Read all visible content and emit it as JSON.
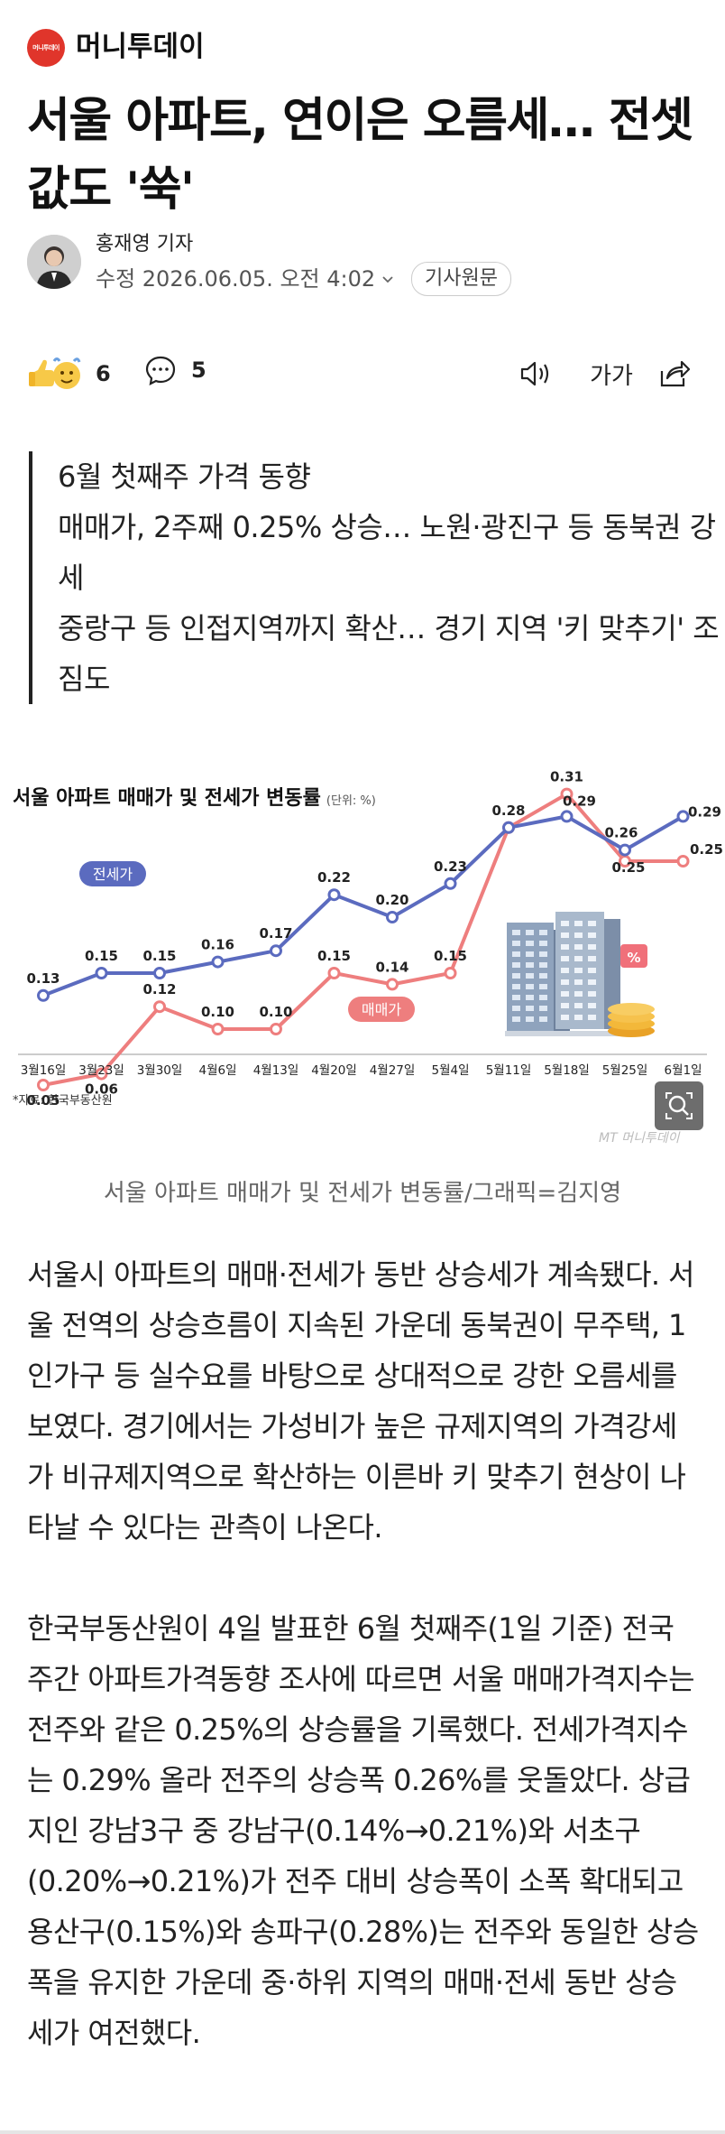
{
  "publisher": {
    "logo_text": "머니투데이",
    "name": "머니투데이"
  },
  "article": {
    "title": "서울 아파트, 연이은 오름세… 전셋값도 '쑥'",
    "author": "홍재영 기자",
    "date": "수정 2026.06.05. 오전 4:02",
    "original_button": "기사원문"
  },
  "actions": {
    "reaction_count": "6",
    "comment_count": "5",
    "font_size_label": "가가"
  },
  "summary": [
    "6월 첫째주 가격 동향",
    "매매가, 2주째 0.25% 상승… 노원·광진구 등 동북권 강세",
    "중랑구 등 인접지역까지 확산… 경기 지역 '키 맞추기' 조짐도"
  ],
  "chart_data": {
    "type": "line",
    "title": "서울 아파트 매매가 및 전세가 변동률",
    "unit": "(단위: %)",
    "categories": [
      "3월16일",
      "3월23일",
      "3월30일",
      "4월6일",
      "4월13일",
      "4월20일",
      "4월27일",
      "5월4일",
      "5월11일",
      "5월18일",
      "5월25일",
      "6월1일"
    ],
    "series": [
      {
        "name": "전세가",
        "color": "#5b6bbf",
        "values": [
          0.13,
          0.15,
          0.15,
          0.16,
          0.17,
          0.22,
          0.2,
          0.23,
          0.28,
          0.29,
          0.26,
          0.29
        ]
      },
      {
        "name": "매매가",
        "color": "#ee7e7e",
        "values": [
          0.05,
          0.06,
          0.12,
          0.1,
          0.1,
          0.15,
          0.14,
          0.15,
          0.28,
          0.31,
          0.25,
          0.25
        ]
      }
    ],
    "labels": {
      "jeonse": [
        "0.13",
        "0.15",
        "0.15",
        "0.16",
        "0.17",
        "0.22",
        "0.20",
        "0.23",
        "0.28",
        "0.29",
        "0.26",
        "0.29"
      ],
      "maemae": [
        "0.05",
        "0.06",
        "0.12",
        "0.10",
        "0.10",
        "0.15",
        "0.14",
        "0.15",
        "",
        "0.31",
        "0.25",
        "0.25"
      ]
    },
    "source": "*자료: 한국부동산원",
    "watermark": "MT 머니투데이",
    "caption": "서울 아파트 매매가 및 전세가 변동률/그래픽=김지영",
    "percent_badge": "%"
  },
  "body": {
    "para1": "서울시 아파트의 매매·전세가 동반 상승세가 계속됐다. 서울 전역의 상승흐름이 지속된 가운데 동북권이 무주택, 1인가구 등 실수요를 바탕으로 상대적으로 강한 오름세를 보였다. 경기에서는 가성비가 높은 규제지역의 가격강세가 비규제지역으로 확산하는 이른바 키 맞추기 현상이 나타날 수 있다는 관측이 나온다.",
    "para2": "한국부동산원이 4일 발표한 6월 첫째주(1일 기준) 전국 주간 아파트가격동향 조사에 따르면 서울 매매가격지수는 전주와 같은 0.25%의 상승률을 기록했다. 전세가격지수는 0.29% 올라 전주의 상승폭 0.26%를 웃돌았다. 상급지인 강남3구 중 강남구(0.14%→0.21%)와 서초구(0.20%→0.21%)가 전주 대비 상승폭이 소폭 확대되고 용산구(0.15%)와 송파구(0.28%)는 전주와 동일한 상승폭을 유지한 가운데 중·하위 지역의 매매·전세 동반 상승세가 여전했다."
  }
}
